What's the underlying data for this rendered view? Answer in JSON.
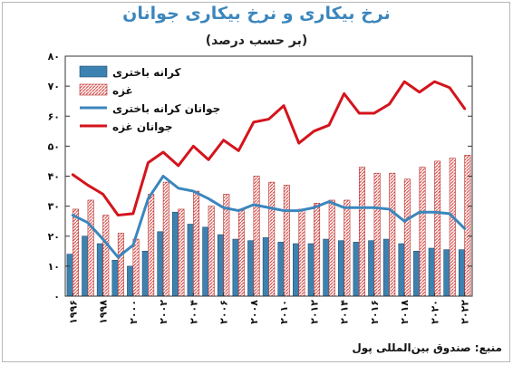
{
  "title": "نرخ بیکاری و نرخ بیکاری جوانان",
  "subtitle": "(بر حسب درصد)",
  "source": "منبع: صندوق بین‌المللی پول",
  "colors": {
    "west_bank_bar": "#3b82b0",
    "gaza_bar_hatch": "#d9534f",
    "west_bank_youth_line": "#3b86bd",
    "gaza_youth_line": "#d4141c"
  },
  "chart_data": {
    "type": "bar",
    "years": [
      1996,
      1997,
      1998,
      1999,
      2000,
      2001,
      2002,
      2003,
      2004,
      2005,
      2006,
      2007,
      2008,
      2009,
      2010,
      2011,
      2012,
      2013,
      2014,
      2015,
      2016,
      2017,
      2018,
      2019,
      2020,
      2021,
      2022
    ],
    "x_tick_labels": [
      "۱۹۹۶",
      "۱۹۹۸",
      "۲۰۰۰",
      "۲۰۰۲",
      "۲۰۰۴",
      "۲۰۰۶",
      "۲۰۰۸",
      "۲۰۱۰",
      "۲۰۱۲",
      "۲۰۱۴",
      "۲۰۱۶",
      "۲۰۱۸",
      "۲۰۲۰",
      "۲۰۲۲"
    ],
    "y_tick_labels": [
      "۰",
      "۱۰",
      "۲۰",
      "۳۰",
      "۴۰",
      "۵۰",
      "۶۰",
      "۷۰",
      "۸۰"
    ],
    "ylim": [
      0,
      80
    ],
    "grid": false,
    "legend_placement": "top-left",
    "series": [
      {
        "name": "کرانه باختری",
        "kind": "bar",
        "values": [
          14,
          20,
          17.5,
          12,
          10,
          15,
          21.5,
          28,
          24,
          23,
          20.5,
          19,
          18.5,
          19.5,
          18,
          17.5,
          17.5,
          19,
          18.5,
          18,
          18.5,
          19,
          17.5,
          15,
          16,
          15.5,
          15.5
        ]
      },
      {
        "name": "غزه",
        "kind": "bar-hatched",
        "values": [
          29,
          32,
          27,
          21,
          19,
          34,
          38,
          29,
          35,
          30,
          34,
          29,
          40,
          38,
          37,
          29,
          31,
          32,
          32,
          43,
          41,
          41,
          39,
          43,
          45,
          46,
          47
        ]
      },
      {
        "name": "جوانان کرانه باختری",
        "kind": "line",
        "values": [
          27,
          24.5,
          19,
          13,
          17,
          32.5,
          40,
          36,
          35,
          32.5,
          29.5,
          28.5,
          30.5,
          29.5,
          28.5,
          28.5,
          29.5,
          31.5,
          29.5,
          29.5,
          29.5,
          29,
          25,
          28,
          28,
          27.5,
          22.5
        ]
      },
      {
        "name": "جوانان غزه",
        "kind": "line",
        "values": [
          40.5,
          37,
          34,
          27,
          27.5,
          44.5,
          48,
          43.5,
          50,
          45.5,
          52,
          48.5,
          58,
          59,
          63.5,
          51,
          55,
          57,
          67.5,
          61,
          61,
          64,
          71.5,
          68,
          71.5,
          69.5,
          62.5
        ]
      }
    ]
  }
}
